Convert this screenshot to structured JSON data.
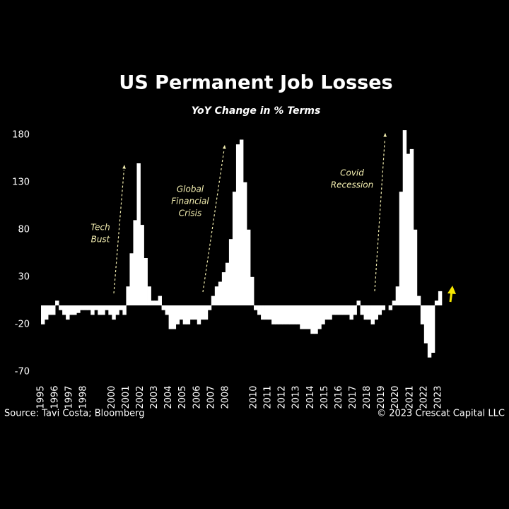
{
  "chart_data": {
    "type": "bar",
    "title": "US Permanent Job Losses",
    "subtitle": "YoY Change in % Terms",
    "source": "Source: Tavi Costa; Bloomberg",
    "credit": "© 2023 Crescat Capital LLC",
    "color": "#ffffff",
    "annotation_color": "#f3eeb0",
    "annotations": [
      {
        "lines": [
          "Tech",
          "Bust"
        ]
      },
      {
        "lines": [
          "Global",
          "Financial",
          "Crisis"
        ]
      },
      {
        "lines": [
          "Covid",
          "Recession"
        ]
      }
    ],
    "x": [
      1995,
      1995.25,
      1995.5,
      1995.75,
      1996,
      1996.25,
      1996.5,
      1996.75,
      1997,
      1997.25,
      1997.5,
      1997.75,
      1998,
      1998.25,
      1998.5,
      1998.75,
      1999,
      1999.25,
      1999.5,
      1999.75,
      2000,
      2000.25,
      2000.5,
      2000.75,
      2001,
      2001.25,
      2001.5,
      2001.75,
      2002,
      2002.25,
      2002.5,
      2002.75,
      2003,
      2003.25,
      2003.5,
      2003.75,
      2004,
      2004.25,
      2004.5,
      2004.75,
      2005,
      2005.25,
      2005.5,
      2005.75,
      2006,
      2006.25,
      2006.5,
      2006.75,
      2007,
      2007.25,
      2007.5,
      2007.75,
      2008,
      2008.25,
      2008.5,
      2008.75,
      2009,
      2009.25,
      2009.5,
      2009.75,
      2010,
      2010.25,
      2010.5,
      2010.75,
      2011,
      2011.25,
      2011.5,
      2011.75,
      2012,
      2012.25,
      2012.5,
      2012.75,
      2013,
      2013.25,
      2013.5,
      2013.75,
      2014,
      2014.25,
      2014.5,
      2014.75,
      2015,
      2015.25,
      2015.5,
      2015.75,
      2016,
      2016.25,
      2016.5,
      2016.75,
      2017,
      2017.25,
      2017.5,
      2017.75,
      2018,
      2018.25,
      2018.5,
      2018.75,
      2019,
      2019.25,
      2019.5,
      2019.75,
      2020,
      2020.25,
      2020.5,
      2020.75,
      2021,
      2021.25,
      2021.5,
      2021.75,
      2022,
      2022.25,
      2022.5,
      2022.75,
      2023
    ],
    "values": [
      -20,
      -15,
      -10,
      -10,
      5,
      -5,
      -10,
      -15,
      -10,
      -10,
      -8,
      -5,
      -5,
      -5,
      -10,
      -5,
      -10,
      -10,
      -5,
      -10,
      -15,
      -10,
      -5,
      -10,
      20,
      55,
      90,
      150,
      85,
      50,
      20,
      5,
      5,
      10,
      -5,
      -10,
      -25,
      -25,
      -20,
      -15,
      -20,
      -20,
      -15,
      -15,
      -20,
      -15,
      -15,
      -5,
      10,
      20,
      25,
      35,
      45,
      70,
      120,
      170,
      175,
      130,
      80,
      30,
      -5,
      -10,
      -15,
      -15,
      -15,
      -20,
      -20,
      -20,
      -20,
      -20,
      -20,
      -20,
      -20,
      -25,
      -25,
      -25,
      -30,
      -30,
      -25,
      -20,
      -15,
      -15,
      -10,
      -10,
      -10,
      -10,
      -10,
      -15,
      -10,
      5,
      -10,
      -15,
      -15,
      -20,
      -15,
      -10,
      -5,
      0,
      -5,
      5,
      20,
      120,
      185,
      160,
      165,
      80,
      10,
      -20,
      -40,
      -55,
      -50,
      5,
      15
    ],
    "xlim": [
      1994.8,
      2024.5
    ],
    "xticks": [
      1995,
      1996,
      1997,
      1998,
      2000,
      2001,
      2002,
      2003,
      2004,
      2005,
      2006,
      2007,
      2008,
      2010,
      2011,
      2012,
      2013,
      2014,
      2015,
      2016,
      2017,
      2018,
      2019,
      2020,
      2021,
      2022,
      2023
    ],
    "ylim": [
      -75,
      200
    ],
    "yticks": [
      180,
      130,
      80,
      30,
      -20,
      -70
    ]
  }
}
